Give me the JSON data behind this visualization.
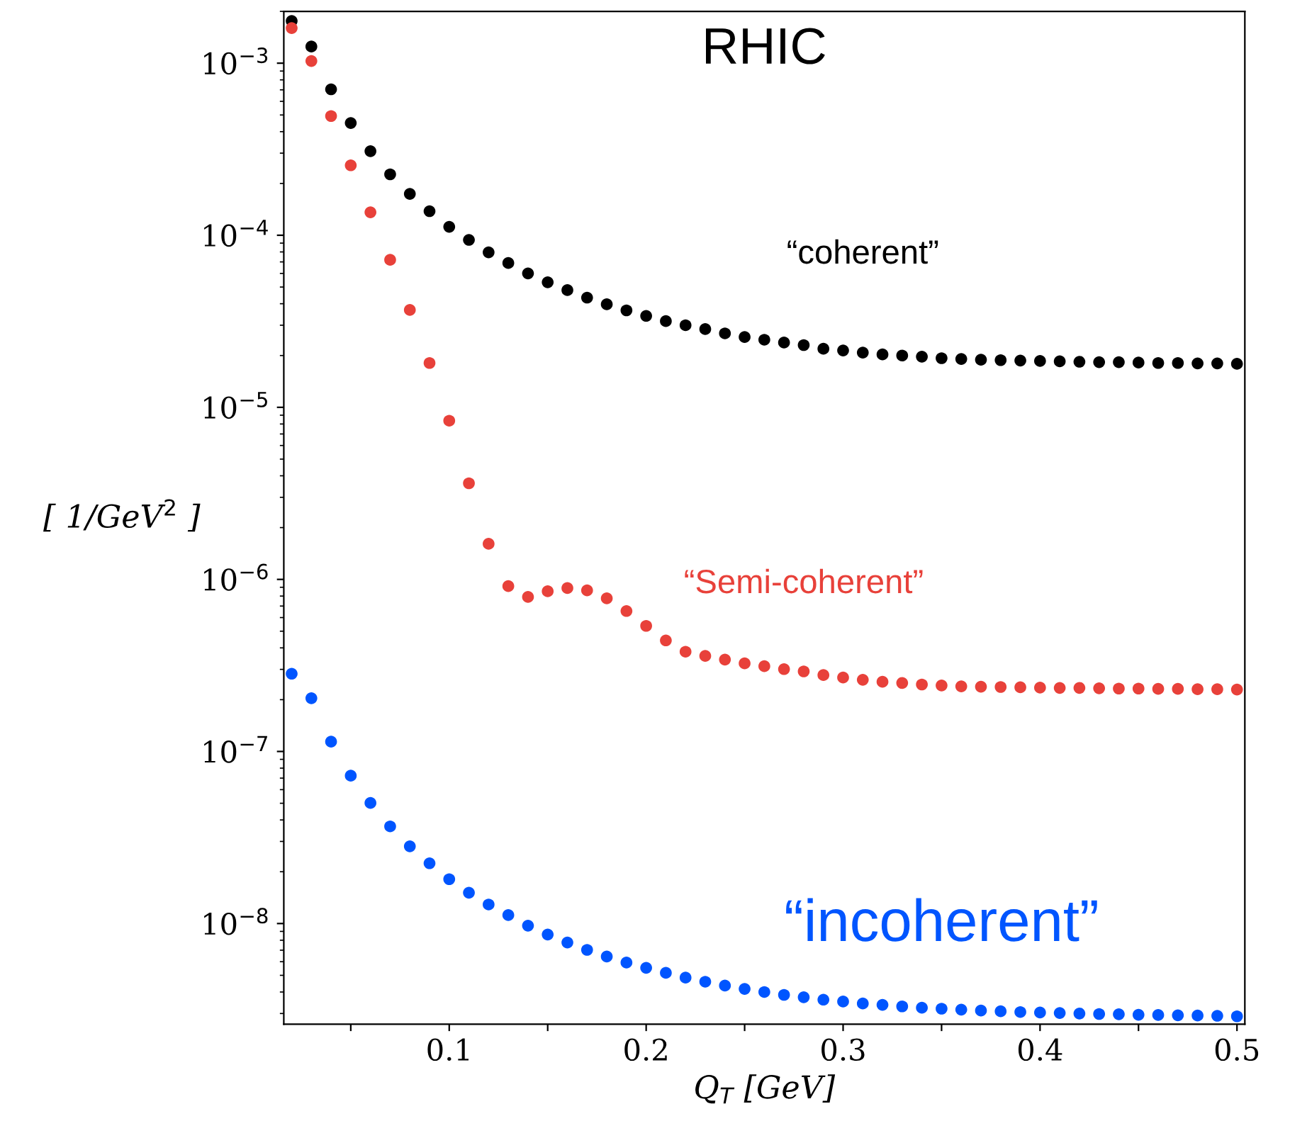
{
  "chart_data": {
    "type": "scatter",
    "title": "RHIC",
    "xlabel": "Q$_{T}$ [GeV]",
    "ylabel": "[ 1/GeV$^{2}$ ]",
    "x": [
      0.02,
      0.03,
      0.04,
      0.05,
      0.06,
      0.07,
      0.08,
      0.09,
      0.1,
      0.11,
      0.12,
      0.13,
      0.14,
      0.15,
      0.16,
      0.17,
      0.18,
      0.19,
      0.2,
      0.21,
      0.22,
      0.23,
      0.24,
      0.25,
      0.26,
      0.27,
      0.28,
      0.29,
      0.3,
      0.31,
      0.32,
      0.33,
      0.34,
      0.35,
      0.36,
      0.37,
      0.38,
      0.39,
      0.4,
      0.41,
      0.42,
      0.43,
      0.44,
      0.45,
      0.46,
      0.47,
      0.48,
      0.49,
      0.5
    ],
    "series": [
      {
        "name": "“coherent”",
        "color": "#000000",
        "values": [
          0.00176,
          0.00125,
          0.000705,
          0.000449,
          0.000308,
          0.000226,
          0.000174,
          0.000138,
          0.000112,
          9.4e-05,
          7.96e-05,
          6.9e-05,
          6e-05,
          5.33e-05,
          4.8e-05,
          4.34e-05,
          3.97e-05,
          3.66e-05,
          3.4e-05,
          3.17e-05,
          3e-05,
          2.85e-05,
          2.69e-05,
          2.56e-05,
          2.47e-05,
          2.38e-05,
          2.3e-05,
          2.19e-05,
          2.14e-05,
          2.08e-05,
          2.03e-05,
          2e-05,
          1.97e-05,
          1.93e-05,
          1.91e-05,
          1.89e-05,
          1.88e-05,
          1.87e-05,
          1.86e-05,
          1.85e-05,
          1.84e-05,
          1.83e-05,
          1.83e-05,
          1.82e-05,
          1.81e-05,
          1.81e-05,
          1.8e-05,
          1.8e-05,
          1.79e-05
        ]
      },
      {
        "name": "“Semi-coherent”",
        "color": "#e8413a",
        "values": [
          0.0016,
          0.00103,
          0.000493,
          0.000255,
          0.000136,
          7.2e-05,
          3.68e-05,
          1.81e-05,
          8.36e-06,
          3.62e-06,
          1.61e-06,
          9.14e-07,
          7.91e-07,
          8.53e-07,
          8.9e-07,
          8.63e-07,
          7.76e-07,
          6.55e-07,
          5.37e-07,
          4.42e-07,
          3.8e-07,
          3.59e-07,
          3.42e-07,
          3.25e-07,
          3.13e-07,
          3.01e-07,
          2.92e-07,
          2.78e-07,
          2.69e-07,
          2.61e-07,
          2.54e-07,
          2.5e-07,
          2.45e-07,
          2.42e-07,
          2.39e-07,
          2.38e-07,
          2.37e-07,
          2.36e-07,
          2.35e-07,
          2.34e-07,
          2.34e-07,
          2.33e-07,
          2.32e-07,
          2.32e-07,
          2.31e-07,
          2.31e-07,
          2.3e-07,
          2.3e-07,
          2.29e-07
        ]
      },
      {
        "name": "“incoherent”",
        "color": "#0055ff",
        "values": [
          2.83e-07,
          2.04e-07,
          1.14e-07,
          7.23e-08,
          5.02e-08,
          3.67e-08,
          2.81e-08,
          2.24e-08,
          1.81e-08,
          1.51e-08,
          1.29e-08,
          1.12e-08,
          9.72e-09,
          8.63e-09,
          7.76e-09,
          7.03e-09,
          6.43e-09,
          5.93e-09,
          5.53e-09,
          5.17e-09,
          4.85e-09,
          4.59e-09,
          4.36e-09,
          4.17e-09,
          4e-09,
          3.85e-09,
          3.73e-09,
          3.61e-09,
          3.52e-09,
          3.43e-09,
          3.37e-09,
          3.3e-09,
          3.24e-09,
          3.2e-09,
          3.16e-09,
          3.12e-09,
          3.09e-09,
          3.06e-09,
          3.04e-09,
          3.02e-09,
          3e-09,
          2.98e-09,
          2.97e-09,
          2.95e-09,
          2.94e-09,
          2.93e-09,
          2.92e-09,
          2.91e-09,
          2.89e-09
        ]
      }
    ],
    "log": "y",
    "marker": "circle",
    "grid": false,
    "legend": false,
    "xlim": [
      0.016,
      0.504
    ],
    "ylim": [
      2.6e-09,
      0.002
    ],
    "xticks": [
      {
        "value": 0.05,
        "label": null
      },
      {
        "value": 0.1,
        "label": "0.1"
      },
      {
        "value": 0.15,
        "label": null
      },
      {
        "value": 0.2,
        "label": "0.2"
      },
      {
        "value": 0.25,
        "label": null
      },
      {
        "value": 0.3,
        "label": "0.3"
      },
      {
        "value": 0.35,
        "label": null
      },
      {
        "value": 0.4,
        "label": "0.4"
      },
      {
        "value": 0.45,
        "label": null
      },
      {
        "value": 0.5,
        "label": "0.5"
      }
    ],
    "yticks": [
      {
        "value": 1e-08,
        "label": "10$^{−8}$"
      },
      {
        "value": 1e-07,
        "label": "10$^{−7}$"
      },
      {
        "value": 1e-06,
        "label": "10$^{−6}$"
      },
      {
        "value": 1e-05,
        "label": "10$^{−5}$"
      },
      {
        "value": 0.0001,
        "label": "10$^{−4}$"
      },
      {
        "value": 0.001,
        "label": "10$^{−3}$"
      }
    ]
  }
}
